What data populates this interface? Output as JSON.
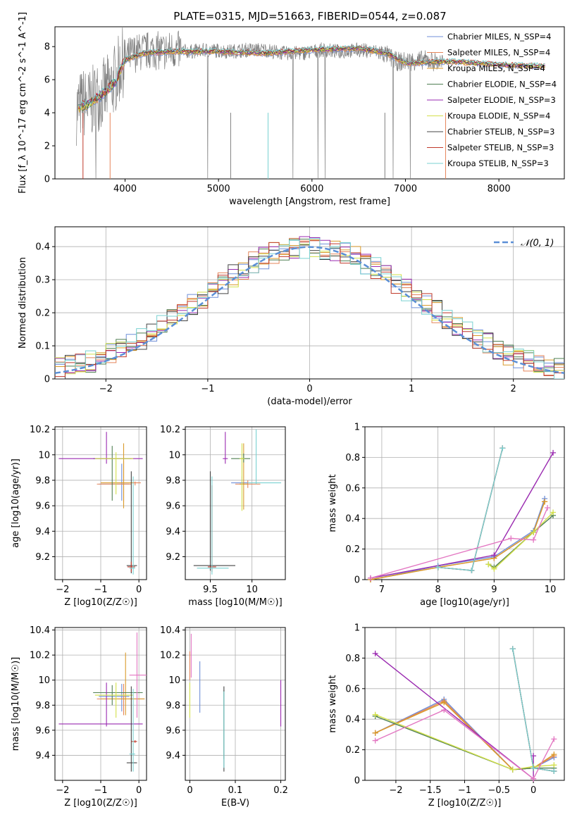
{
  "figure": {
    "suptitle": "PLATE=0315, MJD=51663, FIBERID=0544, z=0.087",
    "series_names": [
      "Chabrier MILES, N_SSP=4",
      "Salpeter MILES, N_SSP=4",
      "Kroupa MILES, N_SSP=4",
      "Chabrier ELODIE, N_SSP=4",
      "Salpeter ELODIE, N_SSP=3",
      "Kroupa ELODIE, N_SSP=4",
      "Chabrier STELIB, N_SSP=3",
      "Salpeter STELIB, N_SSP=3",
      "Kroupa STELIB, N_SSP=3"
    ],
    "series_colors": [
      "#6f8fd8",
      "#e5855a",
      "#d99a2b",
      "#4f7f52",
      "#9a2ab0",
      "#d3e04a",
      "#444444",
      "#c0392b",
      "#79d1d1"
    ]
  },
  "chart_data": [
    {
      "id": "spectrum",
      "type": "line",
      "xlabel": "wavelength [Angstrom, rest frame]",
      "ylabel": "Flux [f_λ 10^-17 erg cm^-2 s^-1 A^-1]",
      "xlim": [
        3250,
        8700
      ],
      "ylim": [
        0,
        9.2
      ],
      "xticks": [
        4000,
        5000,
        6000,
        7000,
        8000
      ],
      "yticks": [
        0,
        2,
        4,
        6,
        8
      ],
      "grid": false,
      "legend": "right",
      "observed": {
        "color": "#808080",
        "x": [
          3480,
          3550,
          3620,
          3700,
          3780,
          3850,
          3930,
          4000,
          4100,
          4200,
          4300,
          4400,
          4500,
          4700,
          4900,
          5100,
          5300,
          5500,
          5700,
          5900,
          6100,
          6300,
          6500,
          6700,
          6800,
          6900,
          7000,
          7200,
          7400
        ],
        "y": [
          4.2,
          4.6,
          4.5,
          5.0,
          5.2,
          5.6,
          6.5,
          7.3,
          7.6,
          7.7,
          7.8,
          7.7,
          7.8,
          7.7,
          7.8,
          7.7,
          7.8,
          7.8,
          7.6,
          7.6,
          7.8,
          7.7,
          7.8,
          7.7,
          7.5,
          7.1,
          7.1,
          7.2,
          7.0
        ]
      },
      "model": {
        "x": [
          3500,
          3600,
          3700,
          3800,
          3900,
          4000,
          4200,
          4500,
          5000,
          5500,
          6000,
          6500,
          6800,
          7000,
          7500,
          8000,
          8500
        ],
        "y": [
          4.3,
          4.5,
          4.9,
          5.3,
          5.9,
          7.2,
          7.6,
          7.7,
          7.7,
          7.6,
          7.8,
          7.9,
          7.6,
          7.0,
          7.1,
          6.9,
          6.8
        ]
      }
    },
    {
      "id": "residual_hist",
      "type": "line",
      "xlabel": "(data-model)/error",
      "ylabel": "Normed distribution",
      "xlim": [
        -2.5,
        2.5
      ],
      "ylim": [
        0,
        0.46
      ],
      "xticks": [
        -2,
        -1,
        0,
        1,
        2
      ],
      "yticks": [
        0,
        0.1,
        0.2,
        0.3,
        0.4
      ],
      "grid": true,
      "legend": "top-right",
      "reference_curve": {
        "name": "N(0,1)",
        "color": "#5b8fd6",
        "style": "dashed"
      },
      "bins": {
        "start": -2.5,
        "width": 0.1,
        "count": 50
      }
    },
    {
      "id": "age_vs_Z",
      "type": "scatter",
      "xlabel": "Z [log10(Z/Z☉)]",
      "ylabel": "age [log10(age/yr)]",
      "xlim": [
        -2.2,
        0.2
      ],
      "ylim": [
        9.02,
        10.22
      ],
      "xticks": [
        -2,
        -1,
        0
      ],
      "yticks": [
        9.2,
        9.4,
        9.6,
        9.8,
        10.0,
        10.2
      ],
      "grid": true,
      "points": [
        {
          "s": 0,
          "x": -0.45,
          "y": 9.77,
          "xe": [
            0.6,
            0.2
          ],
          "ye": [
            0.13,
            0.16
          ]
        },
        {
          "s": 1,
          "x": -0.4,
          "y": 9.77,
          "xe": [
            0.7,
            0.2
          ],
          "ye": [
            0.14,
            0.18
          ]
        },
        {
          "s": 2,
          "x": -0.4,
          "y": 9.78,
          "xe": [
            0.6,
            0.25
          ],
          "ye": [
            0.2,
            0.31
          ]
        },
        {
          "s": 3,
          "x": -0.7,
          "y": 9.97,
          "xe": [
            0.5,
            0.5
          ],
          "ye": [
            0.33,
            0.1
          ]
        },
        {
          "s": 4,
          "x": -0.85,
          "y": 9.97,
          "xe": [
            1.25,
            0.95
          ],
          "ye": [
            0.04,
            0.21
          ]
        },
        {
          "s": 5,
          "x": -0.6,
          "y": 9.97,
          "xe": [
            0.55,
            0.45
          ],
          "ye": [
            0.28,
            0.05
          ]
        },
        {
          "s": 6,
          "x": -0.2,
          "y": 9.13,
          "xe": [
            0.12,
            0.15
          ],
          "ye": [
            0.06,
            0.74
          ]
        },
        {
          "s": 7,
          "x": -0.2,
          "y": 9.12,
          "xe": [
            0.1,
            0.1
          ],
          "ye": [
            0.04,
            0.04
          ]
        },
        {
          "s": 8,
          "x": -0.15,
          "y": 9.11,
          "xe": [
            0.1,
            0.05
          ],
          "ye": [
            0.05,
            0.72
          ]
        },
        {
          "s": 1,
          "x": -0.1,
          "y": 9.78,
          "xe": [
            0.05,
            0.15
          ],
          "ye": [
            0.02,
            0.01
          ]
        }
      ]
    },
    {
      "id": "age_vs_mass",
      "type": "scatter",
      "xlabel": "mass [log10(M/M☉)]",
      "ylabel": "",
      "xlim": [
        9.2,
        10.4
      ],
      "ylim": [
        9.02,
        10.22
      ],
      "xticks": [
        9.5,
        10.0
      ],
      "yticks": [
        9.2,
        9.4,
        9.6,
        9.8,
        10.0,
        10.2
      ],
      "grid": true,
      "points": [
        {
          "s": 0,
          "x": 9.88,
          "y": 9.78,
          "xe": [
            0.13,
            0.12
          ],
          "ye": [
            0.02,
            0.05
          ]
        },
        {
          "s": 1,
          "x": 9.95,
          "y": 9.77,
          "xe": [
            0.15,
            0.15
          ],
          "ye": [
            0.03,
            0.03
          ]
        },
        {
          "s": 2,
          "x": 9.9,
          "y": 9.77,
          "xe": [
            0.05,
            0.05
          ],
          "ye": [
            0.2,
            0.32
          ]
        },
        {
          "s": 3,
          "x": 9.9,
          "y": 9.97,
          "xe": [
            0.15,
            0.08
          ],
          "ye": [
            0.03,
            0.04
          ]
        },
        {
          "s": 4,
          "x": 9.68,
          "y": 9.97,
          "xe": [
            0.03,
            0.03
          ],
          "ye": [
            0.04,
            0.21
          ]
        },
        {
          "s": 5,
          "x": 9.88,
          "y": 9.97,
          "xe": [
            0.03,
            0.03
          ],
          "ye": [
            0.41,
            0.12
          ]
        },
        {
          "s": 6,
          "x": 9.5,
          "y": 9.13,
          "xe": [
            0.2,
            0.3
          ],
          "ye": [
            0.04,
            0.74
          ]
        },
        {
          "s": 7,
          "x": 9.52,
          "y": 9.12,
          "xe": [
            0.05,
            0.05
          ],
          "ye": [
            0.04,
            0.64
          ]
        },
        {
          "s": 8,
          "x": 9.52,
          "y": 9.11,
          "xe": [
            0.18,
            0.2
          ],
          "ye": [
            0.05,
            0.72
          ]
        },
        {
          "s": 8,
          "x": 10.05,
          "y": 9.78,
          "xe": [
            0.1,
            0.3
          ],
          "ye": [
            0.01,
            0.42
          ]
        }
      ]
    },
    {
      "id": "massweight_vs_age",
      "type": "line",
      "xlabel": "age [log10(age/yr)]",
      "ylabel": "mass weight",
      "xlim": [
        6.7,
        10.25
      ],
      "ylim": [
        0,
        1
      ],
      "xticks": [
        7,
        8,
        9,
        10
      ],
      "yticks": [
        0,
        0.2,
        0.4,
        0.6,
        0.8,
        1.0
      ],
      "grid": true,
      "series": [
        {
          "s": 0,
          "x": [
            6.8,
            8.0,
            9.0,
            9.7,
            9.9
          ],
          "y": [
            0.0,
            0.09,
            0.15,
            0.32,
            0.53
          ]
        },
        {
          "s": 1,
          "x": [
            6.8,
            8.0,
            9.0,
            9.7,
            9.9
          ],
          "y": [
            0.0,
            0.08,
            0.14,
            0.31,
            0.51
          ]
        },
        {
          "s": 2,
          "x": [
            6.8,
            8.0,
            9.0,
            9.7,
            9.9
          ],
          "y": [
            0.0,
            0.08,
            0.14,
            0.31,
            0.51
          ]
        },
        {
          "s": 3,
          "x": [
            8.9,
            9.0,
            9.7,
            10.05
          ],
          "y": [
            0.1,
            0.08,
            0.31,
            0.42
          ]
        },
        {
          "s": 4,
          "x": [
            6.8,
            9.0,
            10.05
          ],
          "y": [
            0.01,
            0.16,
            0.83
          ]
        },
        {
          "s": 5,
          "x": [
            8.9,
            9.0,
            9.7,
            10.05
          ],
          "y": [
            0.1,
            0.07,
            0.31,
            0.44
          ]
        },
        {
          "s": 6,
          "x": [
            8.0,
            8.6,
            9.15
          ],
          "y": [
            0.08,
            0.06,
            0.86
          ]
        },
        {
          "s": 7,
          "x": [
            8.0,
            8.6,
            9.15
          ],
          "y": [
            0.08,
            0.06,
            0.86
          ]
        },
        {
          "s": 8,
          "x": [
            8.0,
            8.6,
            9.15
          ],
          "y": [
            0.08,
            0.06,
            0.86
          ]
        },
        {
          "s": 9,
          "x": [
            6.8,
            9.3,
            9.7,
            9.95
          ],
          "y": [
            0.01,
            0.27,
            0.26,
            0.47
          ]
        }
      ]
    },
    {
      "id": "mass_vs_Z",
      "type": "scatter",
      "xlabel": "Z [log10(Z/Z☉)]",
      "ylabel": "mass [log10(M/M☉)]",
      "xlim": [
        -2.2,
        0.2
      ],
      "ylim": [
        9.2,
        10.42
      ],
      "xticks": [
        -2,
        -1,
        0
      ],
      "yticks": [
        9.4,
        9.6,
        9.8,
        10.0,
        10.2,
        10.4
      ],
      "grid": true,
      "points": [
        {
          "s": 0,
          "x": -0.45,
          "y": 9.87,
          "xe": [
            0.6,
            0.2
          ],
          "ye": [
            0.12,
            0.1
          ]
        },
        {
          "s": 1,
          "x": -0.4,
          "y": 9.85,
          "xe": [
            0.7,
            0.55
          ],
          "ye": [
            0.13,
            0.12
          ]
        },
        {
          "s": 2,
          "x": -0.35,
          "y": 9.85,
          "xe": [
            0.65,
            0.5
          ],
          "ye": [
            0.13,
            0.37
          ]
        },
        {
          "s": 3,
          "x": -0.7,
          "y": 9.9,
          "xe": [
            0.5,
            0.8
          ],
          "ye": [
            0.1,
            0.06
          ]
        },
        {
          "s": 4,
          "x": -0.85,
          "y": 9.65,
          "xe": [
            1.25,
            0.95
          ],
          "ye": [
            0.02,
            0.33
          ]
        },
        {
          "s": 5,
          "x": -0.6,
          "y": 9.88,
          "xe": [
            0.55,
            0.45
          ],
          "ye": [
            0.18,
            0.1
          ]
        },
        {
          "s": 6,
          "x": -0.2,
          "y": 9.34,
          "xe": [
            0.12,
            0.15
          ],
          "ye": [
            0.07,
            0.61
          ]
        },
        {
          "s": 7,
          "x": -0.1,
          "y": 9.51,
          "xe": [
            0.1,
            0.05
          ],
          "ye": [
            0.01,
            0.01
          ]
        },
        {
          "s": 8,
          "x": -0.15,
          "y": 9.41,
          "xe": [
            0.1,
            0.05
          ],
          "ye": [
            0.14,
            0.52
          ]
        },
        {
          "s": 9,
          "x": -0.05,
          "y": 10.04,
          "xe": [
            0.2,
            0.25
          ],
          "ye": [
            0.34,
            0.34
          ]
        }
      ]
    },
    {
      "id": "mass_vs_EBV",
      "type": "scatter",
      "xlabel": "E(B-V)",
      "ylabel": "",
      "xlim": [
        -0.01,
        0.21
      ],
      "ylim": [
        9.2,
        10.42
      ],
      "xticks": [
        0.0,
        0.1,
        0.2
      ],
      "yticks": [
        9.4,
        9.6,
        9.8,
        10.0,
        10.2,
        10.4
      ],
      "grid": true,
      "points": [
        {
          "s": 0,
          "x": 0.022,
          "y": 9.94,
          "xe": [
            0,
            0
          ],
          "ye": [
            0.2,
            0.21
          ]
        },
        {
          "s": 1,
          "x": 0.0,
          "y": 10.1,
          "xe": [
            0,
            0
          ],
          "ye": [
            0.1,
            0.13
          ]
        },
        {
          "s": 3,
          "x": 0.075,
          "y": 9.72,
          "xe": [
            0,
            0
          ],
          "ye": [
            0.35,
            0.2
          ]
        },
        {
          "s": 4,
          "x": 0.2,
          "y": 9.81,
          "xe": [
            0,
            0
          ],
          "ye": [
            0.18,
            0.19
          ]
        },
        {
          "s": 5,
          "x": 0.0,
          "y": 9.88,
          "xe": [
            0,
            0
          ],
          "ye": [
            0.18,
            0.1
          ]
        },
        {
          "s": 6,
          "x": 0.075,
          "y": 9.62,
          "xe": [
            0,
            0
          ],
          "ye": [
            0.35,
            0.33
          ]
        },
        {
          "s": 8,
          "x": 0.075,
          "y": 9.6,
          "xe": [
            0,
            0
          ],
          "ye": [
            0.3,
            0.31
          ]
        },
        {
          "s": 9,
          "x": 0.003,
          "y": 10.2,
          "xe": [
            0,
            0
          ],
          "ye": [
            0.18,
            0.17
          ]
        }
      ]
    },
    {
      "id": "massweight_vs_Z",
      "type": "line",
      "xlabel": "Z [log10(Z/Z☉)]",
      "ylabel": "mass weight",
      "xlim": [
        -2.45,
        0.45
      ],
      "ylim": [
        0,
        1
      ],
      "xticks": [
        -2.0,
        -1.5,
        -1.0,
        -0.5,
        0.0
      ],
      "yticks": [
        0,
        0.2,
        0.4,
        0.6,
        0.8,
        1.0
      ],
      "grid": true,
      "series": [
        {
          "s": 0,
          "x": [
            -2.3,
            -1.3,
            -0.3,
            0.0,
            0.3
          ],
          "y": [
            0.31,
            0.53,
            0.07,
            0.08,
            0.15
          ]
        },
        {
          "s": 1,
          "x": [
            -2.3,
            -1.3,
            -0.3,
            0.0,
            0.3
          ],
          "y": [
            0.31,
            0.52,
            0.07,
            0.08,
            0.16
          ]
        },
        {
          "s": 2,
          "x": [
            -2.3,
            -1.3,
            -0.3,
            0.0,
            0.3
          ],
          "y": [
            0.31,
            0.51,
            0.07,
            0.08,
            0.17
          ]
        },
        {
          "s": 3,
          "x": [
            -2.3,
            -0.3,
            0.0,
            0.3
          ],
          "y": [
            0.42,
            0.07,
            0.08,
            0.08
          ]
        },
        {
          "s": 4,
          "x": [
            -2.3,
            0.0,
            0.0
          ],
          "y": [
            0.83,
            0.01,
            0.16
          ]
        },
        {
          "s": 5,
          "x": [
            -2.3,
            -0.3,
            0.0,
            0.3
          ],
          "y": [
            0.43,
            0.07,
            0.09,
            0.1
          ]
        },
        {
          "s": 6,
          "x": [
            -0.3,
            0.0,
            0.3
          ],
          "y": [
            0.86,
            0.08,
            0.06
          ]
        },
        {
          "s": 7,
          "x": [
            -0.3,
            0.0,
            0.3
          ],
          "y": [
            0.86,
            0.08,
            0.06
          ]
        },
        {
          "s": 8,
          "x": [
            -0.3,
            0.0,
            0.3
          ],
          "y": [
            0.86,
            0.08,
            0.06
          ]
        },
        {
          "s": 9,
          "x": [
            -2.3,
            -1.3,
            0.0,
            0.3
          ],
          "y": [
            0.26,
            0.46,
            0.01,
            0.27
          ]
        }
      ]
    }
  ]
}
